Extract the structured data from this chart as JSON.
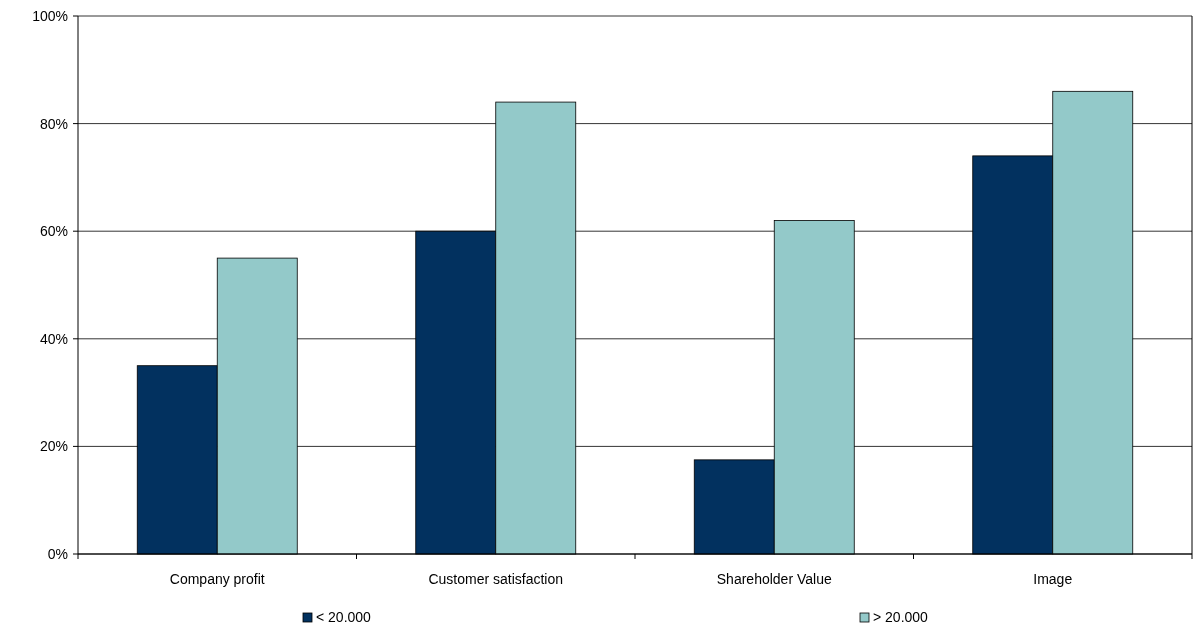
{
  "chart_data": {
    "type": "bar",
    "categories": [
      "Company profit",
      "Customer satisfaction",
      "Shareholder Value",
      "Image"
    ],
    "series": [
      {
        "name": "< 20.000",
        "color": "#02315f",
        "values": [
          35,
          60,
          17.5,
          74
        ]
      },
      {
        "name": "> 20.000",
        "color": "#93c9c9",
        "values": [
          55,
          84,
          62,
          86
        ]
      }
    ],
    "ylim": [
      0,
      100
    ],
    "yticks": [
      {
        "value": 0,
        "label": "0%"
      },
      {
        "value": 20,
        "label": "20%"
      },
      {
        "value": 40,
        "label": "40%"
      },
      {
        "value": 60,
        "label": "60%"
      },
      {
        "value": 80,
        "label": "80%"
      },
      {
        "value": 100,
        "label": "100%"
      }
    ],
    "grid": "y",
    "legend": "bottom"
  }
}
